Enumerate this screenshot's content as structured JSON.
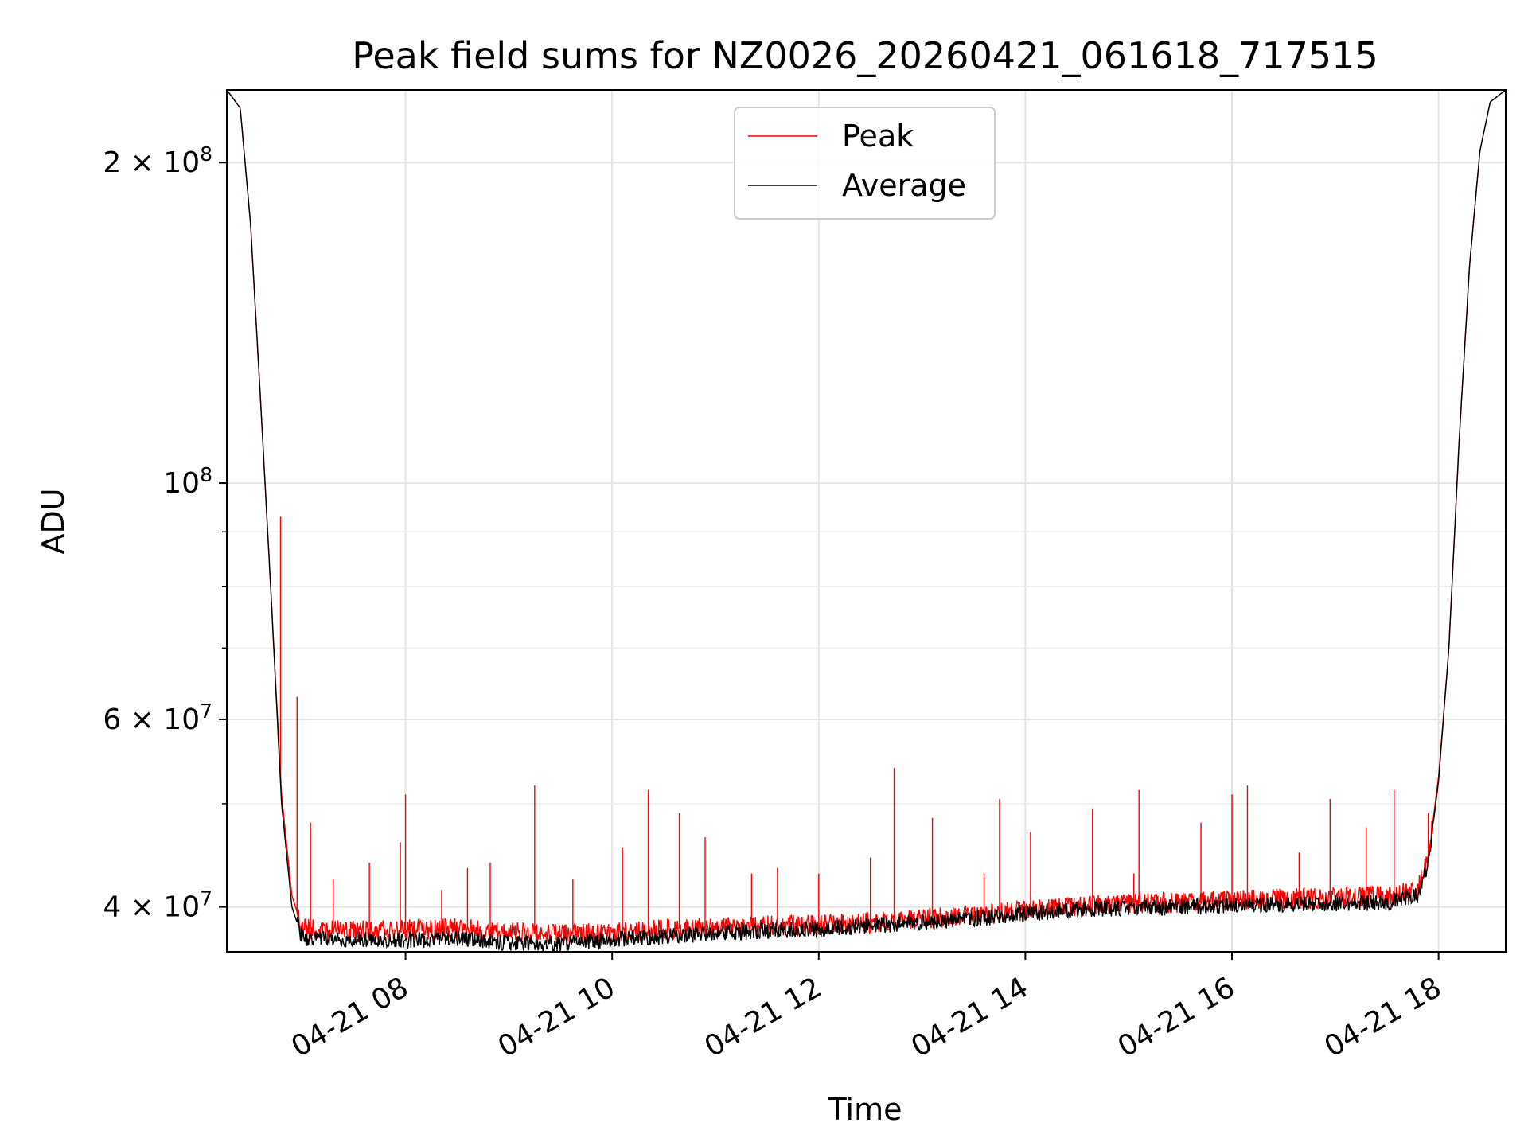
{
  "chart_data": {
    "type": "line",
    "title": "Peak field sums for NZ0026_20260421_061618_717515",
    "xlabel": "Time",
    "ylabel": "ADU",
    "yscale": "log",
    "grid": true,
    "legend_position": "top-center",
    "xlim": [
      6.27,
      18.65
    ],
    "ylim": [
      36300000,
      234000000
    ],
    "x_unit": "hours on 2026-04-21",
    "x_ticks": [
      {
        "value": 8,
        "label": "04-21 08"
      },
      {
        "value": 10,
        "label": "04-21 10"
      },
      {
        "value": 12,
        "label": "04-21 12"
      },
      {
        "value": 14,
        "label": "04-21 14"
      },
      {
        "value": 16,
        "label": "04-21 16"
      },
      {
        "value": 18,
        "label": "04-21 18"
      }
    ],
    "y_major_ticks": [
      {
        "value": 40000000,
        "mantissa": "4",
        "base": "10",
        "exp": "7"
      },
      {
        "value": 60000000,
        "mantissa": "6",
        "base": "10",
        "exp": "7"
      },
      {
        "value": 100000000,
        "mantissa": "",
        "base": "10",
        "exp": "8"
      },
      {
        "value": 200000000,
        "mantissa": "2",
        "base": "10",
        "exp": "8"
      }
    ],
    "y_minor_ticks": [
      50000000,
      70000000,
      80000000,
      90000000
    ],
    "series": [
      {
        "name": "Peak",
        "color": "#ff0000",
        "x": [
          6.27,
          6.4,
          6.5,
          6.6,
          6.7,
          6.8,
          6.9,
          7.0,
          7.2,
          7.5,
          8.0,
          8.5,
          9.0,
          9.5,
          10.0,
          10.5,
          11.0,
          11.5,
          12.0,
          12.5,
          13.0,
          13.5,
          14.0,
          14.5,
          15.0,
          15.5,
          16.0,
          16.5,
          17.0,
          17.5,
          17.8,
          17.9,
          18.0,
          18.1,
          18.2,
          18.3,
          18.4,
          18.5,
          18.65
        ],
        "values": [
          234000000,
          225000000,
          175000000,
          118000000,
          78000000,
          51000000,
          41000000,
          38200000,
          38000000,
          38000000,
          38100000,
          38200000,
          37900000,
          37700000,
          37800000,
          38100000,
          38300000,
          38400000,
          38500000,
          38700000,
          39000000,
          39300000,
          39700000,
          40100000,
          40300000,
          40400000,
          40600000,
          40700000,
          40800000,
          41000000,
          41500000,
          44500000,
          53000000,
          70000000,
          110000000,
          160000000,
          205000000,
          228000000,
          234000000
        ],
        "spikes": [
          {
            "x": 6.79,
            "y": 93000000
          },
          {
            "x": 6.95,
            "y": 63000000
          },
          {
            "x": 7.08,
            "y": 48000000
          },
          {
            "x": 7.3,
            "y": 42500000
          },
          {
            "x": 7.65,
            "y": 44000000
          },
          {
            "x": 7.95,
            "y": 46000000
          },
          {
            "x": 8.0,
            "y": 51000000
          },
          {
            "x": 8.35,
            "y": 41500000
          },
          {
            "x": 8.6,
            "y": 43500000
          },
          {
            "x": 8.82,
            "y": 44000000
          },
          {
            "x": 9.25,
            "y": 52000000
          },
          {
            "x": 9.62,
            "y": 42500000
          },
          {
            "x": 10.1,
            "y": 45500000
          },
          {
            "x": 10.35,
            "y": 51500000
          },
          {
            "x": 10.65,
            "y": 49000000
          },
          {
            "x": 10.9,
            "y": 46500000
          },
          {
            "x": 11.35,
            "y": 43000000
          },
          {
            "x": 11.6,
            "y": 43500000
          },
          {
            "x": 12.0,
            "y": 43000000
          },
          {
            "x": 12.5,
            "y": 44500000
          },
          {
            "x": 12.73,
            "y": 54000000
          },
          {
            "x": 13.1,
            "y": 48500000
          },
          {
            "x": 13.6,
            "y": 43000000
          },
          {
            "x": 13.75,
            "y": 50500000
          },
          {
            "x": 14.05,
            "y": 47000000
          },
          {
            "x": 14.65,
            "y": 49500000
          },
          {
            "x": 15.05,
            "y": 43000000
          },
          {
            "x": 15.1,
            "y": 51500000
          },
          {
            "x": 15.7,
            "y": 48000000
          },
          {
            "x": 16.0,
            "y": 51000000
          },
          {
            "x": 16.15,
            "y": 52000000
          },
          {
            "x": 16.65,
            "y": 45000000
          },
          {
            "x": 16.95,
            "y": 50500000
          },
          {
            "x": 17.3,
            "y": 47500000
          },
          {
            "x": 17.57,
            "y": 51500000
          },
          {
            "x": 17.9,
            "y": 49000000
          }
        ]
      },
      {
        "name": "Average",
        "color": "#000000",
        "x": [
          6.27,
          6.4,
          6.5,
          6.6,
          6.7,
          6.8,
          6.9,
          7.0,
          7.2,
          7.5,
          8.0,
          8.5,
          9.0,
          9.5,
          10.0,
          10.5,
          11.0,
          11.5,
          12.0,
          12.5,
          13.0,
          13.5,
          14.0,
          14.5,
          15.0,
          15.5,
          16.0,
          16.5,
          17.0,
          17.5,
          17.8,
          17.9,
          18.0,
          18.1,
          18.2,
          18.3,
          18.4,
          18.5,
          18.65
        ],
        "values": [
          234000000,
          225000000,
          175000000,
          118000000,
          78000000,
          50000000,
          40000000,
          37400000,
          37300000,
          37300000,
          37200000,
          37400000,
          37000000,
          36900000,
          37300000,
          37500000,
          37800000,
          38000000,
          38100000,
          38400000,
          38700000,
          39000000,
          39400000,
          39800000,
          39900000,
          40000000,
          40100000,
          40200000,
          40300000,
          40400000,
          41000000,
          44000000,
          52500000,
          70000000,
          110000000,
          160000000,
          205000000,
          228000000,
          234000000
        ]
      }
    ]
  }
}
